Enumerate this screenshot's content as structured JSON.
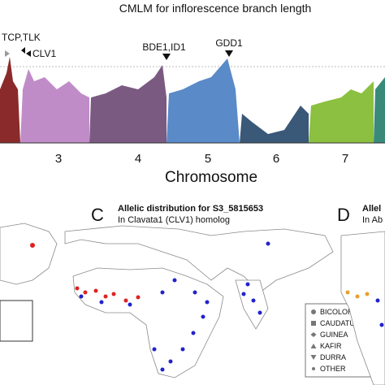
{
  "manhattan": {
    "title": "CMLM for inflorescence branch length",
    "annotations": [
      "TCP,TLK",
      "CLV1",
      "BDE1,ID1",
      "GDD1"
    ],
    "chromosomes": [
      "3",
      "4",
      "5",
      "6",
      "7"
    ],
    "xlabel": "Chromosome"
  },
  "panel_c": {
    "letter": "C",
    "title": "Allelic distribution for S3_5815653",
    "subtitle": "In Clavata1 (CLV1) homolog",
    "legend": [
      "BICOLOR",
      "CAUDATUM",
      "GUINEA",
      "KAFIR",
      "DURRA",
      "OTHER"
    ]
  },
  "panel_d": {
    "letter": "D",
    "title": "Allel",
    "subtitle": "In Ab"
  }
}
